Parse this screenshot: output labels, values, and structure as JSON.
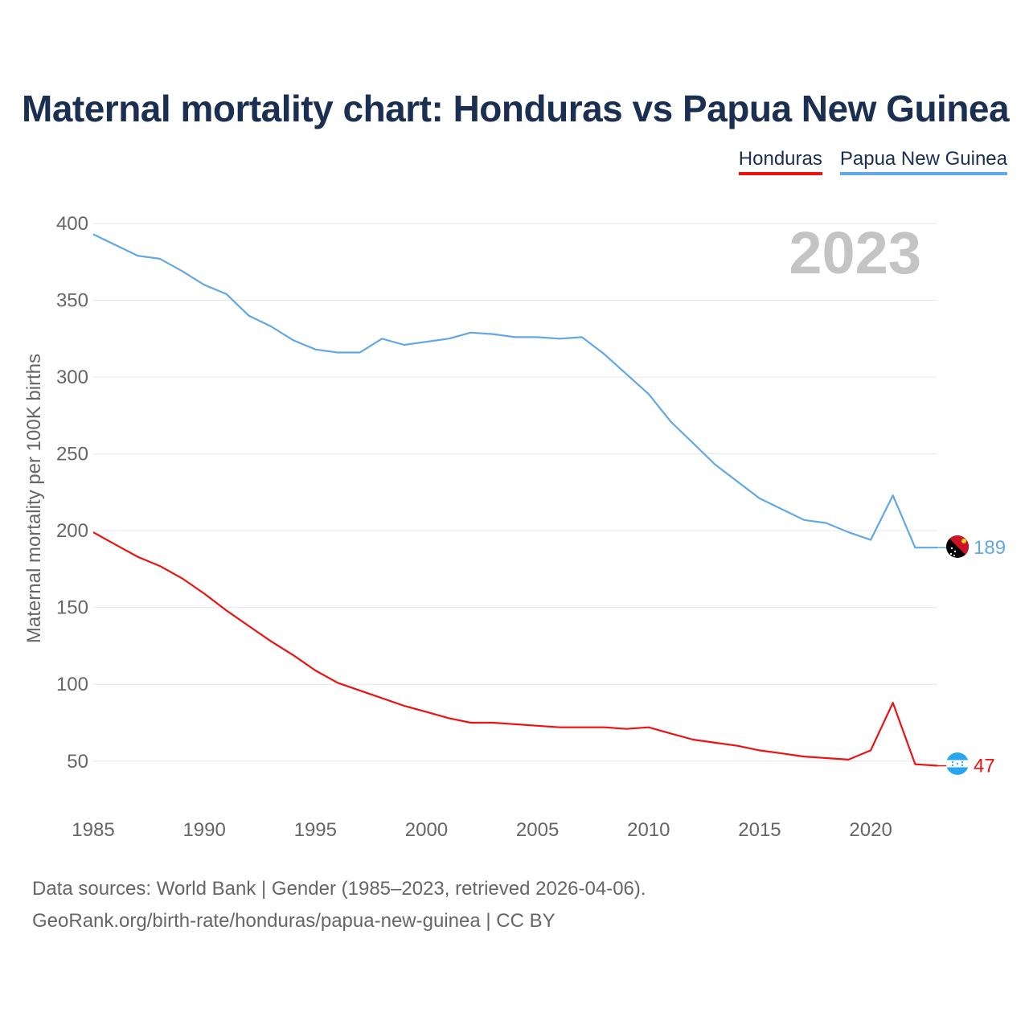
{
  "title": "Maternal mortality chart: Honduras vs Papua New Guinea",
  "legend": [
    {
      "label": "Honduras",
      "color": "#ee1111"
    },
    {
      "label": "Papua New Guinea",
      "color": "#62a8e5"
    }
  ],
  "year_watermark": "2023",
  "source": {
    "line1": "Data sources: World Bank | Gender (1985–2023, retrieved 2026-04-06).",
    "line2": "GeoRank.org/birth-rate/honduras/papua-new-guinea | CC BY"
  },
  "chart_data": {
    "type": "line",
    "title": "Maternal mortality chart: Honduras vs Papua New Guinea",
    "xlabel": "",
    "ylabel": "Maternal mortality per 100K births",
    "xlim": [
      1985,
      2023
    ],
    "ylim": [
      30,
      400
    ],
    "x_ticks": [
      "1985",
      "1990",
      "1995",
      "2000",
      "2005",
      "2010",
      "2015",
      "2020"
    ],
    "y_ticks": [
      "50",
      "100",
      "150",
      "200",
      "250",
      "300",
      "350",
      "400"
    ],
    "grid": true,
    "x": [
      1985,
      1986,
      1987,
      1988,
      1989,
      1990,
      1991,
      1992,
      1993,
      1994,
      1995,
      1996,
      1997,
      1998,
      1999,
      2000,
      2001,
      2002,
      2003,
      2004,
      2005,
      2006,
      2007,
      2008,
      2009,
      2010,
      2011,
      2012,
      2013,
      2014,
      2015,
      2016,
      2017,
      2018,
      2019,
      2020,
      2021,
      2022,
      2023
    ],
    "series": [
      {
        "name": "Honduras",
        "color": "#ee1111",
        "end_label": "47",
        "values": [
          199,
          191,
          183,
          177,
          169,
          159,
          148,
          138,
          128,
          119,
          109,
          101,
          96,
          91,
          86,
          82,
          78,
          75,
          75,
          74,
          73,
          72,
          72,
          72,
          71,
          72,
          68,
          64,
          62,
          60,
          57,
          55,
          53,
          52,
          51,
          57,
          88,
          48,
          47
        ]
      },
      {
        "name": "Papua New Guinea",
        "color": "#62a8e5",
        "end_label": "189",
        "values": [
          393,
          386,
          379,
          377,
          369,
          360,
          354,
          340,
          333,
          324,
          318,
          316,
          316,
          325,
          321,
          323,
          325,
          329,
          328,
          326,
          326,
          325,
          326,
          315,
          302,
          289,
          271,
          257,
          243,
          232,
          221,
          214,
          207,
          205,
          199,
          194,
          223,
          189,
          189
        ]
      }
    ]
  }
}
